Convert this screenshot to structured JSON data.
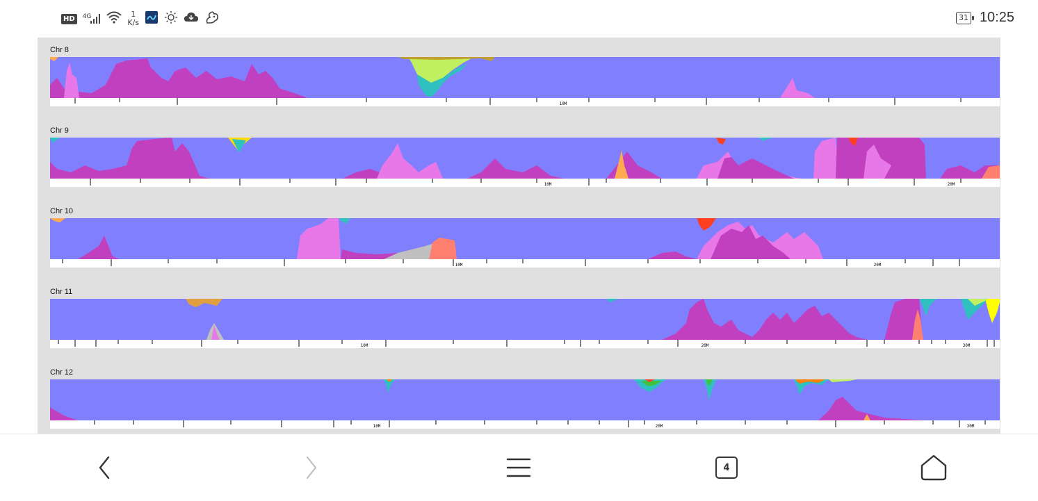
{
  "status_bar": {
    "hd": "HD",
    "network": "4G",
    "speed_value": "1",
    "speed_unit": "K/s",
    "battery": "31",
    "time": "10:25",
    "icons": [
      "hd-icon",
      "signal-icon",
      "wifi-icon",
      "app-icon",
      "brightness-icon",
      "cloud-icon",
      "squirrel-icon",
      "battery-icon"
    ]
  },
  "tracks": [
    {
      "label": "Chr 8",
      "ticks": [
        "10M"
      ]
    },
    {
      "label": "Chr 9",
      "ticks": [
        "10M",
        "20M"
      ]
    },
    {
      "label": "Chr 10",
      "ticks": [
        "10M",
        "20M"
      ]
    },
    {
      "label": "Chr 11",
      "ticks": [
        "10M",
        "20M",
        "30M"
      ]
    },
    {
      "label": "Chr 12",
      "ticks": [
        "10M",
        "20M",
        "30M"
      ]
    }
  ],
  "nav_bar": {
    "tab_count": "4",
    "icons": [
      "back-icon",
      "forward-icon",
      "menu-icon",
      "tabs-icon",
      "home-icon"
    ]
  },
  "colors": {
    "background_blue": "#8080ff",
    "magenta": "#c040c0",
    "pink": "#e878e8",
    "salmon": "#ff8070",
    "teal": "#30c0c0",
    "lime": "#c0f060",
    "gray": "#c0c0c0"
  }
}
